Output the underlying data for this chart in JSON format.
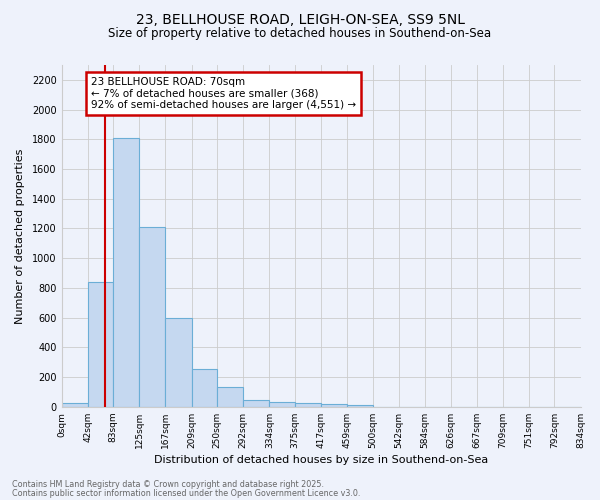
{
  "title1": "23, BELLHOUSE ROAD, LEIGH-ON-SEA, SS9 5NL",
  "title2": "Size of property relative to detached houses in Southend-on-Sea",
  "xlabel": "Distribution of detached houses by size in Southend-on-Sea",
  "ylabel": "Number of detached properties",
  "bin_edges": [
    0,
    42,
    83,
    125,
    167,
    209,
    250,
    292,
    334,
    375,
    417,
    459,
    500,
    542,
    584,
    626,
    667,
    709,
    751,
    792,
    834
  ],
  "bin_counts": [
    25,
    840,
    1810,
    1210,
    600,
    255,
    130,
    45,
    32,
    27,
    18,
    15,
    0,
    0,
    0,
    0,
    0,
    0,
    0,
    0
  ],
  "bar_color": "#c5d8f0",
  "bar_edge_color": "#6baed6",
  "vline_x": 70,
  "vline_color": "#cc0000",
  "annotation_text": "23 BELLHOUSE ROAD: 70sqm\n← 7% of detached houses are smaller (368)\n92% of semi-detached houses are larger (4,551) →",
  "annotation_box_color": "white",
  "annotation_box_edge_color": "#cc0000",
  "ylim": [
    0,
    2300
  ],
  "yticks": [
    0,
    200,
    400,
    600,
    800,
    1000,
    1200,
    1400,
    1600,
    1800,
    2000,
    2200
  ],
  "tick_labels": [
    "0sqm",
    "42sqm",
    "83sqm",
    "125sqm",
    "167sqm",
    "209sqm",
    "250sqm",
    "292sqm",
    "334sqm",
    "375sqm",
    "417sqm",
    "459sqm",
    "500sqm",
    "542sqm",
    "584sqm",
    "626sqm",
    "667sqm",
    "709sqm",
    "751sqm",
    "792sqm",
    "834sqm"
  ],
  "footer1": "Contains HM Land Registry data © Crown copyright and database right 2025.",
  "footer2": "Contains public sector information licensed under the Open Government Licence v3.0.",
  "bg_color": "#eef2fb",
  "grid_color": "#cccccc"
}
